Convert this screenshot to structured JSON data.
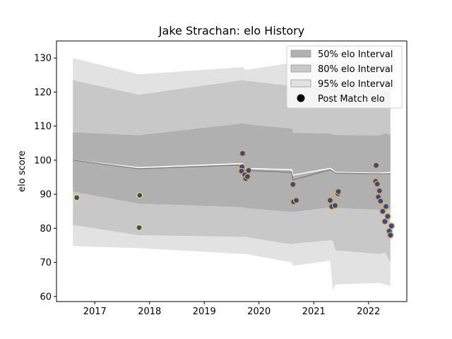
{
  "chart_data": {
    "type": "line",
    "title": "Jake Strachan: elo History",
    "xlabel": "",
    "ylabel": "elo score",
    "xlim": [
      2016.3,
      2022.7
    ],
    "ylim": [
      58.5,
      135
    ],
    "x_ticks": [
      2017,
      2018,
      2019,
      2020,
      2021,
      2022
    ],
    "x_tick_labels": [
      "2017",
      "2018",
      "2019",
      "2020",
      "2021",
      "2022"
    ],
    "y_ticks": [
      60,
      70,
      80,
      90,
      100,
      110,
      120,
      130
    ],
    "y_tick_labels": [
      "60",
      "70",
      "80",
      "90",
      "100",
      "110",
      "120",
      "130"
    ],
    "grid": false,
    "legend_position": "top-right",
    "legend": [
      {
        "label": "50% elo Interval",
        "kind": "patch",
        "color": "#b0b0b0"
      },
      {
        "label": "80% elo Interval",
        "kind": "patch",
        "color": "#c8c8c8"
      },
      {
        "label": "95% elo Interval",
        "kind": "patch",
        "color": "#e2e2e2"
      },
      {
        "label": "Post Match elo",
        "kind": "marker",
        "color": "#000000"
      }
    ],
    "colors": {
      "band50": "#b0b0b0",
      "band80": "#c8c8c8",
      "band95": "#e2e2e2",
      "mean_line": "#ffffff",
      "median_line": "#808080",
      "marker_face": "#1f4ea6",
      "marker_edge_orange": "#f0a030",
      "marker_edge_yellow": "#f5e62a"
    },
    "bands": {
      "x": [
        2016.6,
        2017.8,
        2019.7,
        2019.75,
        2020.6,
        2020.62,
        2021.3,
        2021.35,
        2021.4,
        2022.2,
        2022.3,
        2022.4
      ],
      "band50": {
        "upper": [
          108.2,
          107.3,
          110.8,
          110.6,
          109.2,
          108.0,
          107.8,
          107.5,
          107.4,
          107.2,
          107.8,
          107.5
        ],
        "lower": [
          90.8,
          87.3,
          86.2,
          86.0,
          84.8,
          84.8,
          86.2,
          86.0,
          86.0,
          85.5,
          86.0,
          85.5
        ]
      },
      "band80": {
        "upper": [
          123.5,
          119.2,
          123.5,
          123.3,
          121.8,
          121.5,
          122.0,
          121.0,
          121.0,
          120.5,
          120.5,
          120.0
        ],
        "lower": [
          81.0,
          78.0,
          77.5,
          77.5,
          75.3,
          75.5,
          76.5,
          76.3,
          73.5,
          72.5,
          73.0,
          70.0
        ]
      },
      "band95": {
        "upper": [
          130.0,
          125.2,
          127.3,
          126.5,
          128.6,
          128.5,
          129.0,
          129.0,
          129.0,
          129.0,
          129.2,
          129.0
        ],
        "lower": [
          74.8,
          74.2,
          72.5,
          72.5,
          70.0,
          69.0,
          70.5,
          61.8,
          63.5,
          64.0,
          63.5,
          63.0
        ]
      }
    },
    "mean_line": {
      "x": [
        2016.6,
        2017.8,
        2019.7,
        2019.75,
        2020.6,
        2020.62,
        2021.3,
        2021.4,
        2022.2,
        2022.4
      ],
      "y": [
        100.0,
        97.8,
        99.0,
        97.6,
        97.2,
        95.6,
        97.6,
        96.4,
        96.2,
        96.4
      ]
    },
    "median_line": {
      "x": [
        2016.6,
        2017.8,
        2019.7,
        2019.75,
        2020.6,
        2020.62,
        2021.3,
        2021.4,
        2022.2,
        2022.4
      ],
      "y": [
        100.0,
        97.5,
        98.6,
        97.0,
        96.4,
        94.2,
        97.2,
        96.2,
        96.0,
        96.0
      ]
    },
    "series": [
      {
        "name": "Post Match elo",
        "points": [
          {
            "x": 2016.67,
            "y": 89.0,
            "edge": "yellow"
          },
          {
            "x": 2017.82,
            "y": 89.7,
            "edge": "yellow"
          },
          {
            "x": 2017.81,
            "y": 80.2,
            "edge": "yellow"
          },
          {
            "x": 2019.7,
            "y": 102.0,
            "edge": "orange"
          },
          {
            "x": 2019.69,
            "y": 98.0,
            "edge": "orange"
          },
          {
            "x": 2019.68,
            "y": 96.8,
            "edge": "orange"
          },
          {
            "x": 2019.74,
            "y": 95.7,
            "edge": "orange"
          },
          {
            "x": 2019.76,
            "y": 94.6,
            "edge": "orange"
          },
          {
            "x": 2019.79,
            "y": 95.2,
            "edge": "orange"
          },
          {
            "x": 2019.81,
            "y": 97.0,
            "edge": "orange"
          },
          {
            "x": 2020.62,
            "y": 92.9,
            "edge": "orange"
          },
          {
            "x": 2020.63,
            "y": 87.8,
            "edge": "orange"
          },
          {
            "x": 2020.68,
            "y": 88.2,
            "edge": "orange"
          },
          {
            "x": 2021.3,
            "y": 88.2,
            "edge": "orange"
          },
          {
            "x": 2021.33,
            "y": 86.4,
            "edge": "orange"
          },
          {
            "x": 2021.39,
            "y": 86.7,
            "edge": "orange"
          },
          {
            "x": 2021.44,
            "y": 90.2,
            "edge": "orange"
          },
          {
            "x": 2021.45,
            "y": 90.8,
            "edge": "orange"
          },
          {
            "x": 2022.14,
            "y": 98.5,
            "edge": "orange"
          },
          {
            "x": 2022.13,
            "y": 93.8,
            "edge": "orange"
          },
          {
            "x": 2022.16,
            "y": 93.0,
            "edge": "orange"
          },
          {
            "x": 2022.2,
            "y": 91.0,
            "edge": "orange"
          },
          {
            "x": 2022.18,
            "y": 89.2,
            "edge": "orange"
          },
          {
            "x": 2022.22,
            "y": 88.0,
            "edge": "orange"
          },
          {
            "x": 2022.26,
            "y": 85.0,
            "edge": "orange"
          },
          {
            "x": 2022.3,
            "y": 82.0,
            "edge": "orange"
          },
          {
            "x": 2022.32,
            "y": 86.4,
            "edge": "orange"
          },
          {
            "x": 2022.35,
            "y": 83.5,
            "edge": "orange"
          },
          {
            "x": 2022.38,
            "y": 79.2,
            "edge": "orange"
          },
          {
            "x": 2022.4,
            "y": 78.0,
            "edge": "orange"
          },
          {
            "x": 2022.42,
            "y": 80.7,
            "edge": "orange"
          }
        ]
      }
    ]
  }
}
